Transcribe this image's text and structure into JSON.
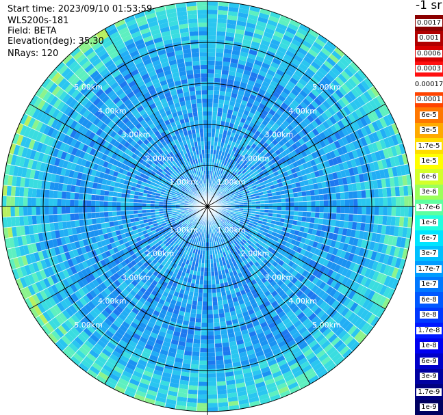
{
  "info": {
    "start_time": "Start time: 2023/09/10 01:53:59",
    "device": "WLS200s-181",
    "field": "Field: BETA",
    "elevation": "Elevation(deg): 35.30",
    "nrays": "NRays: 120"
  },
  "chart_data": {
    "type": "polar-ppi",
    "field": "BETA",
    "nrays": 120,
    "range_rings_km": [
      1,
      2,
      3,
      4,
      5
    ],
    "range_labels": [
      "1.00km",
      "2.00km",
      "3.00km",
      "4.00km",
      "5.00km"
    ],
    "spokes_deg": [
      0,
      30,
      60,
      90,
      120,
      150,
      180,
      210,
      240,
      270,
      300,
      330
    ],
    "colorbar": {
      "unit_label": "-1 sr",
      "levels": [
        {
          "label": "0.0017",
          "color": "#8b0000"
        },
        {
          "label": "0.001",
          "color": "#b00000"
        },
        {
          "label": "0.0006",
          "color": "#d80000"
        },
        {
          "label": "0.0003",
          "color": "#ff1010"
        },
        {
          "label": "0.00017",
          "color": "#ffffff"
        },
        {
          "label": "0.0001",
          "color": "#ff4400"
        },
        {
          "label": "6e-5",
          "color": "#ff7700"
        },
        {
          "label": "3e-5",
          "color": "#ffaa00"
        },
        {
          "label": "1.7e-5",
          "color": "#ffdd00"
        },
        {
          "label": "1e-5",
          "color": "#ffff00"
        },
        {
          "label": "6e-6",
          "color": "#d4ff2a"
        },
        {
          "label": "3e-6",
          "color": "#9cff5a"
        },
        {
          "label": "1.7e-6",
          "color": "#5cffa0"
        },
        {
          "label": "1e-6",
          "color": "#20ffdf"
        },
        {
          "label": "6e-7",
          "color": "#00e4ff"
        },
        {
          "label": "3e-7",
          "color": "#00c0ff"
        },
        {
          "label": "1.7e-7",
          "color": "#009cff"
        },
        {
          "label": "1e-7",
          "color": "#0078ff"
        },
        {
          "label": "6e-8",
          "color": "#0058ff"
        },
        {
          "label": "3e-8",
          "color": "#0038ff"
        },
        {
          "label": "1.7e-8",
          "color": "#0018ff"
        },
        {
          "label": "1e-8",
          "color": "#0000f0"
        },
        {
          "label": "6e-9",
          "color": "#0000c8"
        },
        {
          "label": "3e-9",
          "color": "#0000a0"
        },
        {
          "label": "1.7e-9",
          "color": "#000080"
        },
        {
          "label": "1e-9",
          "color": "#000060"
        }
      ]
    }
  }
}
